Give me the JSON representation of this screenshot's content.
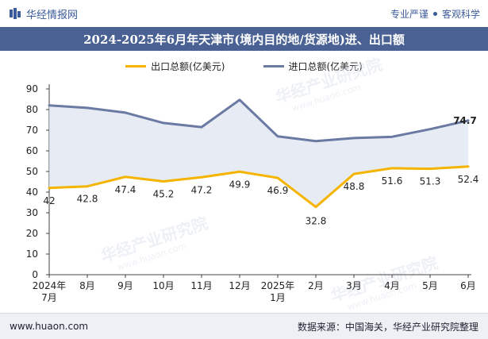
{
  "header": {
    "brand": "华经情报网",
    "slogan_left": "专业严谨",
    "slogan_right": "客观科学"
  },
  "footer": {
    "url": "www.huaon.com",
    "source": "数据来源：中国海关，华经产业研究院整理"
  },
  "watermark": {
    "text": "华经产业研究院",
    "url": "www.huaon.com"
  },
  "colors": {
    "export": "#f5b400",
    "import": "#6b7aa3",
    "fill": "#dfe4ef",
    "title_bg": "#4a6194"
  },
  "chart_data": {
    "type": "line",
    "title": "2024-2025年6月年天津市(境内目的地/货源地)进、出口额",
    "categories": [
      "2024年\n7月",
      "8月",
      "9月",
      "10月",
      "11月",
      "12月",
      "2025年\n1月",
      "2月",
      "3月",
      "4月",
      "5月",
      "6月"
    ],
    "series": [
      {
        "name": "出口总额(亿美元)",
        "values": [
          42,
          42.8,
          47.4,
          45.2,
          47.2,
          49.9,
          46.9,
          32.8,
          48.8,
          51.6,
          51.3,
          52.4
        ],
        "labels": [
          "42",
          "42.8",
          "47.4",
          "45.2",
          "47.2",
          "49.9",
          "46.9",
          "32.8",
          "48.8",
          "51.6",
          "51.3",
          "52.4"
        ]
      },
      {
        "name": "进口总额(亿美元)",
        "values": [
          82,
          80.8,
          78.5,
          73.5,
          71.5,
          84.7,
          67,
          64.7,
          66.2,
          66.8,
          70.5,
          74.7
        ],
        "labels": [
          null,
          null,
          null,
          null,
          null,
          null,
          null,
          null,
          null,
          null,
          null,
          "74.7"
        ]
      }
    ],
    "ylim": [
      0,
      90
    ],
    "yticks": [
      "0",
      "10",
      "20",
      "30",
      "40",
      "50",
      "60",
      "70",
      "80",
      "90"
    ],
    "grid": false,
    "legend": "top-center"
  }
}
